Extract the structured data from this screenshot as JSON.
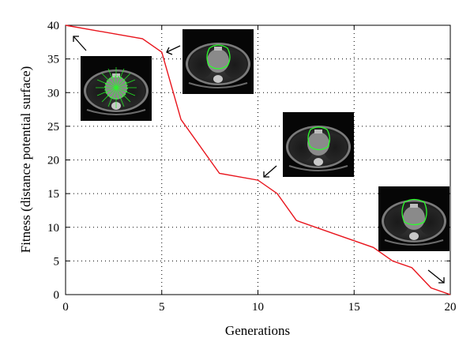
{
  "chart_data": {
    "type": "line",
    "xlabel": "Generations",
    "ylabel": "Fitness (distance potential surface)",
    "xlim": [
      0,
      20
    ],
    "ylim": [
      0,
      40
    ],
    "xticks": [
      "0",
      "5",
      "10",
      "15",
      "20"
    ],
    "yticks": [
      "0",
      "5",
      "10",
      "15",
      "20",
      "25",
      "30",
      "35",
      "40"
    ],
    "grid": "dotted",
    "series": [
      {
        "color": "#e8141c",
        "x": [
          0,
          4,
          5,
          6,
          8,
          10,
          11,
          12,
          14,
          16,
          17,
          18,
          19,
          20
        ],
        "y": [
          40,
          38,
          36,
          26,
          18,
          17,
          15,
          11,
          9,
          7,
          5,
          4,
          1,
          0
        ]
      }
    ],
    "insets": [
      {
        "description": "CT slice with initial green contour points (generation 0)",
        "icon": "ct-scan-thumbnail"
      },
      {
        "description": "CT slice with green heart contour (generation 5)",
        "icon": "ct-scan-thumbnail"
      },
      {
        "description": "CT slice with green heart contour (generation 10)",
        "icon": "ct-scan-thumbnail"
      },
      {
        "description": "CT slice with green heart contour (generation 20)",
        "icon": "ct-scan-thumbnail"
      }
    ]
  }
}
